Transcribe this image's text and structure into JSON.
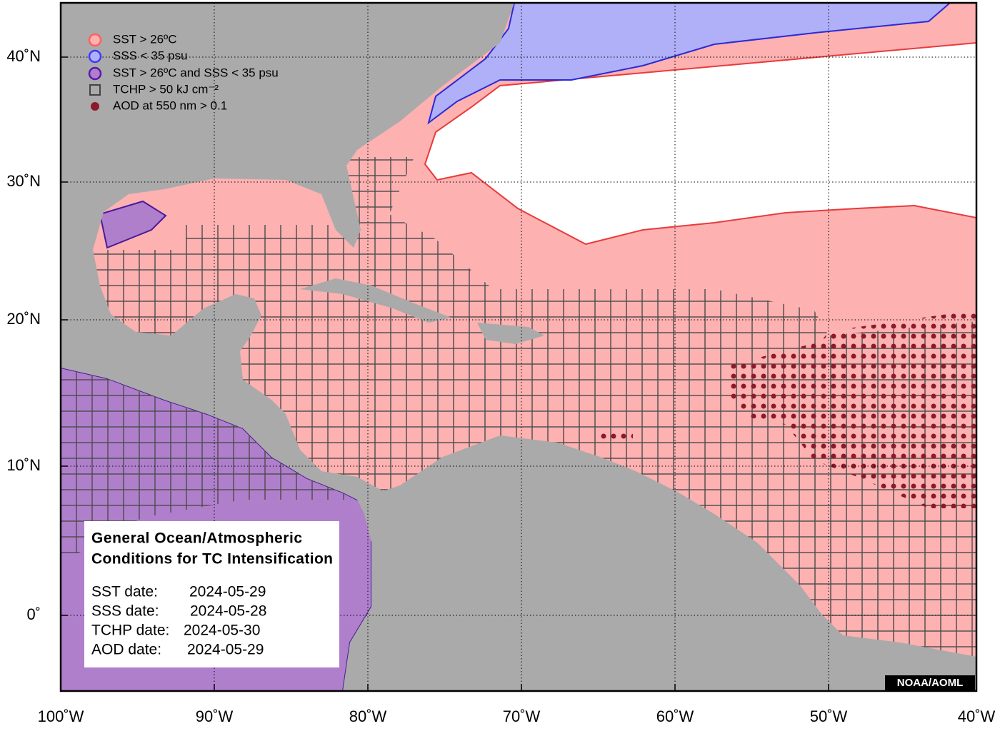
{
  "legend": [
    {
      "label": "SST > 26ºC"
    },
    {
      "label": "SSS < 35 psu"
    },
    {
      "label": "SST > 26ºC and SSS < 35 psu"
    },
    {
      "label": "TCHP > 50 kJ cm⁻²"
    },
    {
      "label": "AOD at 550 nm > 0.1"
    }
  ],
  "info_box": {
    "title_lines": [
      "General Ocean/Atmospheric",
      "Conditions for TC Intensification"
    ],
    "dates": [
      {
        "label": "SST date:",
        "date": "2024-05-29"
      },
      {
        "label": "SSS date:",
        "date": "2024-05-28"
      },
      {
        "label": "TCHP date:",
        "date": "2024-05-30"
      },
      {
        "label": "AOD date:",
        "date": "2024-05-29"
      }
    ]
  },
  "axes": {
    "lon_labels": [
      "100˚W",
      "90˚W",
      "80˚W",
      "70˚W",
      "60˚W",
      "50˚W",
      "40˚W"
    ],
    "lat_labels": [
      "40˚N",
      "30˚N",
      "20˚N",
      "10˚N",
      "0˚"
    ]
  },
  "credit": "NOAA/AOML"
}
